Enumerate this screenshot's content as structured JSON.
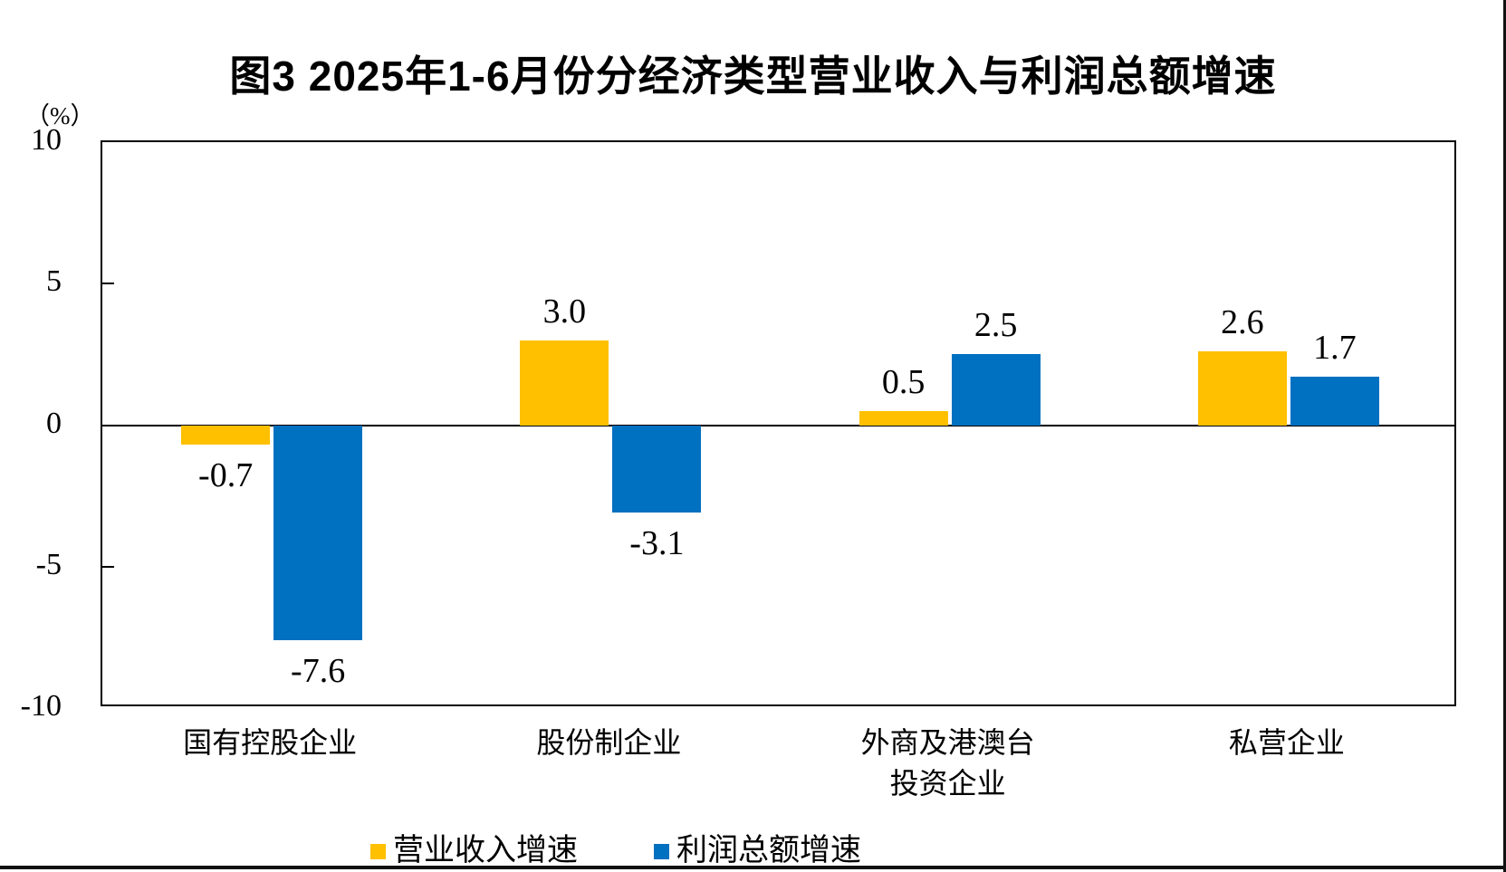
{
  "title": "图3 2025年1-6月份分经济类型营业收入与利润总额增速",
  "unit_label": "（%）",
  "colors": {
    "revenue_series": "#FFC000",
    "profit_series": "#0070C0",
    "axis": "#000000",
    "page_border": "#111111"
  },
  "chart_data": {
    "type": "bar",
    "title": "图3 2025年1-6月份分经济类型营业收入与利润总额增速",
    "categories": [
      "国有控股企业",
      "股份制企业",
      "外商及港澳台\n投资企业",
      "私营企业"
    ],
    "series": [
      {
        "name": "营业收入增速",
        "color": "#FFC000",
        "values": [
          -0.7,
          3.0,
          0.5,
          2.6
        ]
      },
      {
        "name": "利润总额增速",
        "color": "#0070C0",
        "values": [
          -7.6,
          -3.1,
          2.5,
          1.7
        ]
      }
    ],
    "data_labels": {
      "营业收入增速": [
        "-0.7",
        "3.0",
        "0.5",
        "2.6"
      ],
      "利润总额增速": [
        "-7.6",
        "-3.1",
        "2.5",
        "1.7"
      ]
    },
    "ylabel": "（%）",
    "xlabel": "",
    "ylim": [
      -10,
      10
    ],
    "yticks": [
      10,
      5,
      0,
      -5,
      -10
    ],
    "grid": false,
    "legend_position": "bottom"
  }
}
